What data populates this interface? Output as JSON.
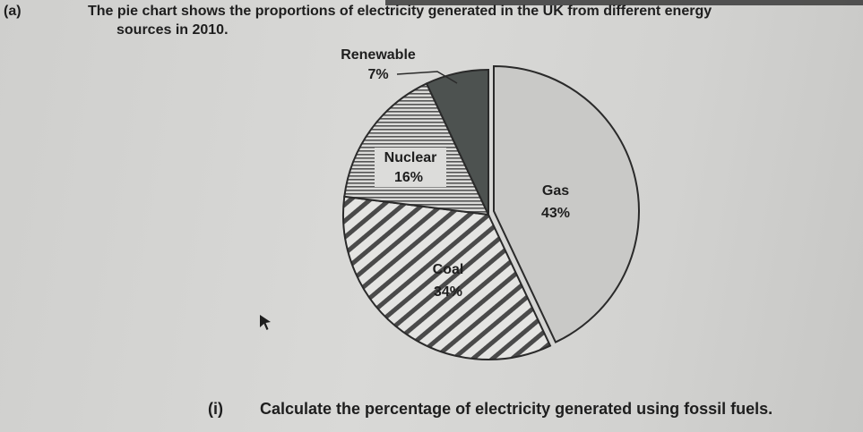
{
  "question": {
    "part_label": "(a)",
    "text_line1": "The pie chart shows the proportions of electricity generated in the UK from different energy",
    "text_line2": "sources in 2010.",
    "sub_part_label": "(i)",
    "sub_part_text": "Calculate the percentage of electricity generated using fossil fuels."
  },
  "chart_data": {
    "type": "pie",
    "title": "",
    "slices": [
      {
        "label": "Gas",
        "value": 43,
        "value_label": "43%",
        "color": "#c9c9c7",
        "pattern": "light-solid"
      },
      {
        "label": "Coal",
        "value": 34,
        "value_label": "34%",
        "color": "#e4e4e2",
        "pattern": "diagonal-hatch"
      },
      {
        "label": "Nuclear",
        "value": 16,
        "value_label": "16%",
        "color": "#dcdcda",
        "pattern": "horizontal-lines"
      },
      {
        "label": "Renewable",
        "value": 7,
        "value_label": "7%",
        "color": "#4d5250",
        "pattern": "dark-solid"
      }
    ]
  }
}
